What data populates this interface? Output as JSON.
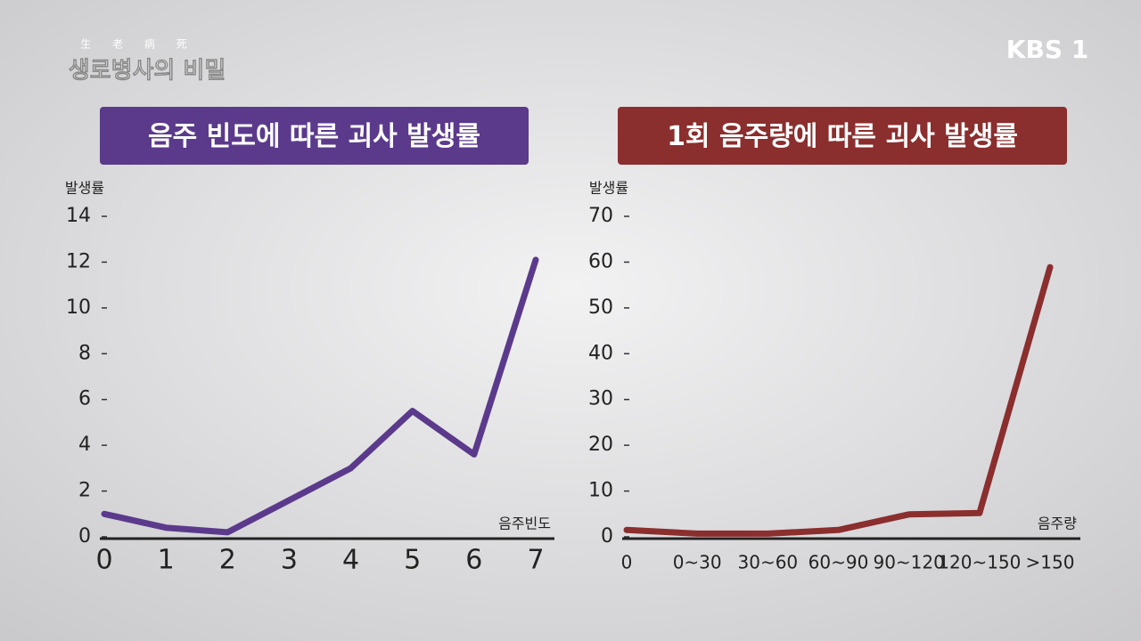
{
  "overlay": {
    "hanja": "生 老 病 死",
    "program": "생로병사의 비밀",
    "channel": "KBS 1"
  },
  "chart_data": [
    {
      "type": "line",
      "title": "음주 빈도에 따른 괴사 발생률",
      "y_label": "발생률",
      "x_label": "음주빈도",
      "x": [
        0,
        1,
        2,
        3,
        4,
        5,
        6,
        7
      ],
      "xlim": [
        0,
        7
      ],
      "xticks": [
        0,
        1,
        2,
        3,
        4,
        5,
        6,
        7
      ],
      "series": [
        {
          "name": "음주 빈도",
          "color": "#5b3a8c",
          "values": [
            1.0,
            0.4,
            0.2,
            1.6,
            3.0,
            5.5,
            3.6,
            12.1
          ]
        }
      ],
      "ylim": [
        0,
        14
      ],
      "yticks": [
        0,
        2,
        4,
        6,
        8,
        10,
        12,
        14
      ],
      "title_color": "#5b3a8c"
    },
    {
      "type": "line",
      "title": "1회 음주량에 따른 괴사 발생률",
      "y_label": "발생률",
      "x_label": "음주량",
      "categories": [
        "0",
        "0~30",
        "30~60",
        "60~90",
        "90~120",
        "120~150",
        ">150"
      ],
      "series": [
        {
          "name": "음주량",
          "color": "#8b2e2e",
          "values": [
            1.5,
            0.7,
            0.7,
            1.5,
            4.9,
            5.2,
            58.9
          ]
        }
      ],
      "ylim": [
        0,
        70
      ],
      "yticks": [
        0,
        10,
        20,
        30,
        40,
        50,
        60,
        70
      ],
      "title_color": "#8b2e2e"
    }
  ]
}
